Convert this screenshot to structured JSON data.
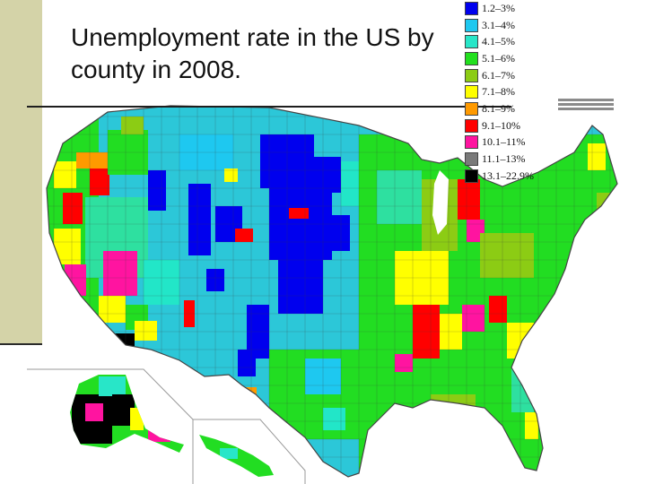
{
  "slide": {
    "title": "Unemployment rate in the US by county in 2008."
  },
  "legend": {
    "items": [
      {
        "label": "1.2–3%",
        "color": "#0000ee"
      },
      {
        "label": "3.1–4%",
        "color": "#1ec8f0"
      },
      {
        "label": "4.1–5%",
        "color": "#28e6c8"
      },
      {
        "label": "5.1–6%",
        "color": "#22e01e"
      },
      {
        "label": "6.1–7%",
        "color": "#8ccc14"
      },
      {
        "label": "7.1–8%",
        "color": "#ffff00"
      },
      {
        "label": "8.1–9%",
        "color": "#ff9a00"
      },
      {
        "label": "9.1–10%",
        "color": "#ff0000"
      },
      {
        "label": "10.1–11%",
        "color": "#ff14a0"
      },
      {
        "label": "11.1–13%",
        "color": "#7a7a7a"
      },
      {
        "label": "13.1–22.9%",
        "color": "#000000"
      }
    ]
  },
  "map": {
    "regions": [
      "contiguous-us",
      "alaska",
      "hawaii"
    ],
    "border_color": "#555555"
  }
}
